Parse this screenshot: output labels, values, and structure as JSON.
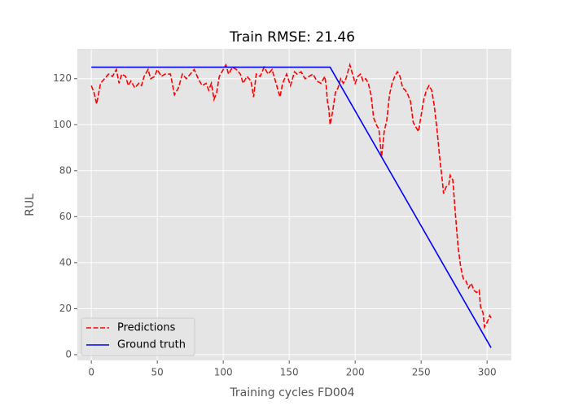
{
  "chart_data": {
    "type": "line",
    "title": "Train RMSE: 21.46",
    "xlabel": "Training cycles FD004",
    "ylabel": "RUL",
    "xlim": [
      -10.6,
      318.4
    ],
    "ylim": [
      -2.5,
      133
    ],
    "xticks": [
      0,
      50,
      100,
      150,
      200,
      250,
      300
    ],
    "yticks": [
      0,
      20,
      40,
      60,
      80,
      100,
      120
    ],
    "grid": true,
    "legend": "lower-left",
    "series": [
      {
        "name": "Predictions",
        "color": "#ff0000",
        "dashed": true,
        "x": [
          0,
          2,
          4,
          5,
          7,
          10,
          13,
          16,
          19,
          21,
          23,
          26,
          28,
          30,
          33,
          36,
          38,
          40,
          43,
          45,
          48,
          50,
          53,
          56,
          60,
          63,
          66,
          69,
          72,
          75,
          78,
          81,
          84,
          87,
          89,
          91,
          93,
          95,
          97,
          100,
          102,
          104,
          107,
          110,
          113,
          115,
          118,
          121,
          123,
          125,
          128,
          131,
          134,
          137,
          140,
          143,
          145,
          148,
          151,
          154,
          156,
          159,
          162,
          165,
          168,
          171,
          174,
          177,
          178,
          179,
          180,
          181,
          183,
          185,
          187,
          189,
          191,
          193,
          195,
          196,
          198,
          200,
          202,
          204,
          206,
          208,
          210,
          212,
          214,
          216,
          218,
          220,
          222,
          224,
          226,
          228,
          230,
          232,
          234,
          236,
          238,
          240,
          242,
          244,
          246,
          248,
          250,
          252,
          254,
          256,
          258,
          260,
          262,
          264,
          266,
          267,
          269,
          271,
          272,
          274,
          276,
          278,
          280,
          282,
          284,
          286,
          288,
          290,
          292,
          294,
          295,
          297,
          298,
          300,
          302,
          303
        ],
        "values": [
          117,
          114,
          109,
          112,
          118,
          120,
          122,
          121,
          124,
          118,
          122,
          121,
          117,
          119,
          116,
          118,
          117,
          121,
          124,
          120,
          121,
          124,
          121,
          122,
          122,
          113,
          116,
          122,
          120,
          122,
          124,
          120,
          117,
          118,
          115,
          118,
          111,
          114,
          121,
          124,
          126,
          122,
          125,
          124,
          122,
          118,
          121,
          119,
          112,
          122,
          121,
          125,
          122,
          124,
          118,
          112,
          118,
          122,
          117,
          123,
          122,
          123,
          120,
          121,
          122,
          119,
          118,
          121,
          117,
          110,
          107,
          100,
          106,
          114,
          116,
          120,
          118,
          120,
          124,
          126,
          122,
          118,
          121,
          122,
          119,
          120,
          118,
          113,
          103,
          100,
          98,
          86,
          97,
          102,
          113,
          118,
          121,
          123,
          121,
          116,
          115,
          113,
          110,
          101,
          99,
          97,
          104,
          111,
          115,
          117,
          115,
          108,
          98,
          86,
          76,
          70,
          73,
          74,
          78,
          76,
          61,
          47,
          38,
          33,
          32,
          29,
          31,
          28,
          27,
          28,
          21,
          18,
          12,
          14,
          17,
          16
        ]
      },
      {
        "name": "Ground truth",
        "color": "#0000ff",
        "dashed": false,
        "x": [
          0,
          181,
          303
        ],
        "values": [
          125,
          125,
          3
        ]
      }
    ]
  }
}
